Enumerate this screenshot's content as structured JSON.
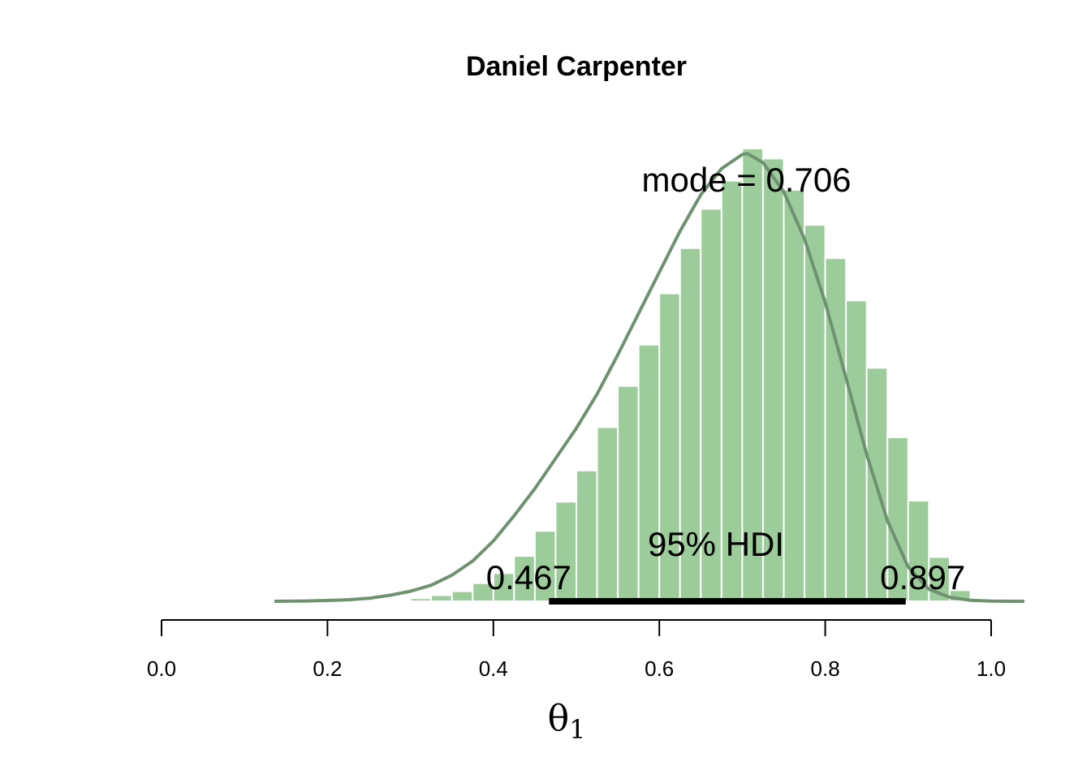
{
  "colors": {
    "bar_fill": "#9ccc9a",
    "bar_edge": "#ffffff",
    "curve": "#6e9270",
    "hdi_bar": "#000000",
    "axis": "#000000"
  },
  "chart_data": {
    "type": "bar",
    "title": "Daniel Carpenter",
    "xlabel_symbol": "θ",
    "xlabel_subscript": "1",
    "ylabel": "",
    "xlim": [
      0.0,
      1.0
    ],
    "x_ticks": [
      0.0,
      0.2,
      0.4,
      0.6,
      0.8,
      1.0
    ],
    "x_tick_labels": [
      "0.0",
      "0.2",
      "0.4",
      "0.6",
      "0.8",
      "1.0"
    ],
    "grid": false,
    "y_axis_shown": false,
    "bins": {
      "width": 0.025,
      "lefts": [
        0.3,
        0.325,
        0.35,
        0.375,
        0.4,
        0.425,
        0.45,
        0.475,
        0.5,
        0.525,
        0.55,
        0.575,
        0.6,
        0.625,
        0.65,
        0.675,
        0.7,
        0.725,
        0.75,
        0.775,
        0.8,
        0.825,
        0.85,
        0.875,
        0.9,
        0.925,
        0.95
      ],
      "density": [
        0.03,
        0.06,
        0.1,
        0.18,
        0.28,
        0.45,
        0.7,
        0.99,
        1.3,
        1.73,
        2.14,
        2.55,
        3.06,
        3.51,
        3.9,
        4.18,
        4.5,
        4.4,
        4.09,
        3.74,
        3.41,
        2.99,
        2.32,
        1.63,
        1.0,
        0.44,
        0.11
      ]
    },
    "density_curve": {
      "x": [
        0.136,
        0.15,
        0.175,
        0.2,
        0.225,
        0.25,
        0.275,
        0.3,
        0.325,
        0.35,
        0.375,
        0.4,
        0.425,
        0.45,
        0.475,
        0.5,
        0.525,
        0.55,
        0.575,
        0.6,
        0.625,
        0.65,
        0.675,
        0.7,
        0.706,
        0.725,
        0.75,
        0.775,
        0.8,
        0.825,
        0.85,
        0.875,
        0.9,
        0.925,
        0.95,
        0.975,
        1.0,
        1.025,
        1.04
      ],
      "y": [
        0.0,
        0.001,
        0.003,
        0.008,
        0.015,
        0.03,
        0.06,
        0.1,
        0.16,
        0.26,
        0.4,
        0.6,
        0.85,
        1.12,
        1.42,
        1.72,
        2.06,
        2.45,
        2.86,
        3.27,
        3.68,
        4.04,
        4.3,
        4.44,
        4.45,
        4.36,
        4.07,
        3.6,
        2.97,
        2.22,
        1.46,
        0.8,
        0.34,
        0.12,
        0.04,
        0.01,
        0.002,
        0.0,
        0.0
      ]
    },
    "mode": 0.706,
    "mode_label": "mode = 0.706",
    "hdi": {
      "low": 0.467,
      "high": 0.897,
      "low_label": "0.467",
      "high_label": "0.897",
      "label": "95% HDI"
    }
  }
}
